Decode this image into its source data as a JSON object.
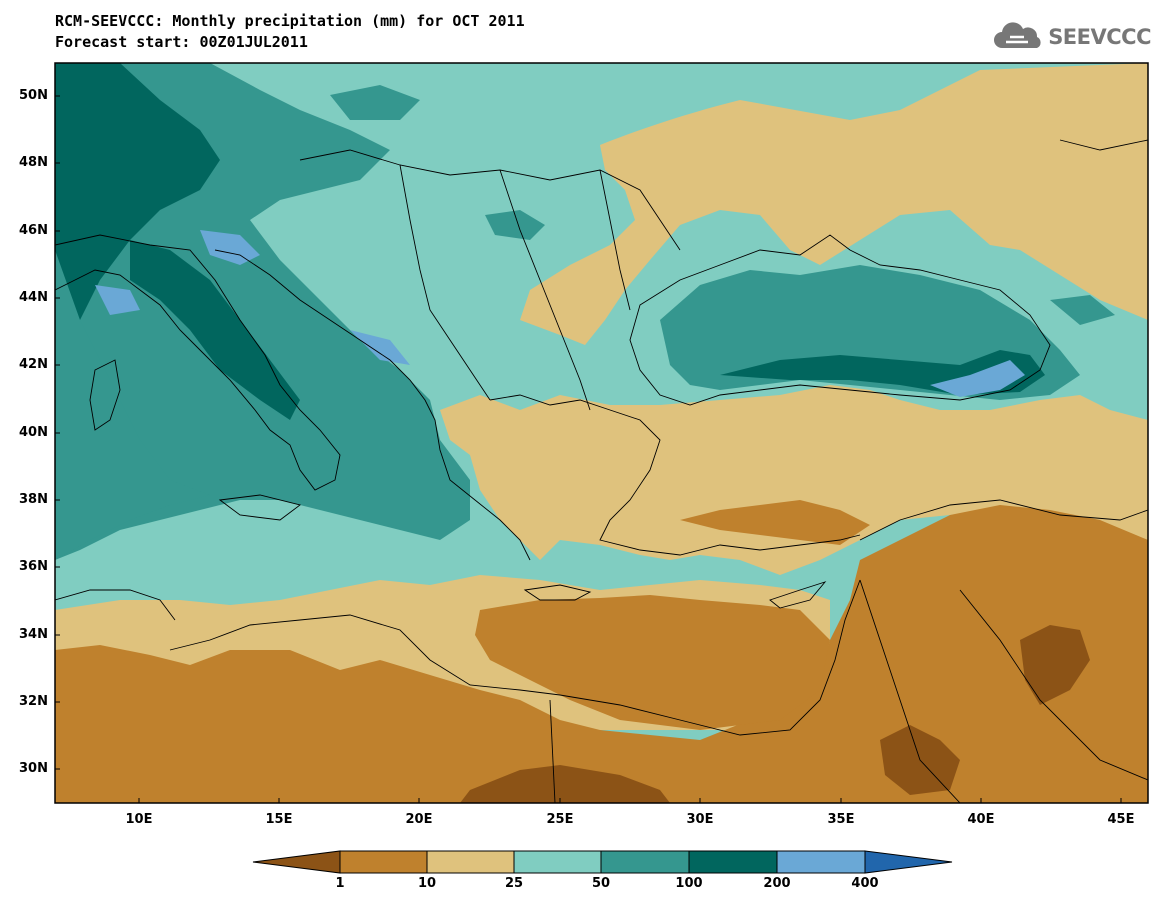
{
  "header": {
    "title": "RCM-SEEVCCC: Monthly precipitation (mm) for OCT 2011",
    "subtitle": "Forecast start: 00Z01JUL2011",
    "logo_text": "SEEVCCC"
  },
  "axes": {
    "lat_labels": [
      "50N",
      "48N",
      "46N",
      "44N",
      "42N",
      "40N",
      "38N",
      "36N",
      "34N",
      "32N",
      "30N"
    ],
    "lon_labels": [
      "10E",
      "15E",
      "20E",
      "25E",
      "30E",
      "35E",
      "40E",
      "45E"
    ]
  },
  "colorbar": {
    "thresholds": [
      "1",
      "10",
      "25",
      "50",
      "100",
      "200",
      "400"
    ],
    "colors": [
      "#8c5316",
      "#bf812d",
      "#dfc27d",
      "#80cdc1",
      "#35978f",
      "#01665e",
      "#6aa8d6",
      "#2166ac"
    ]
  },
  "regions": [
    {
      "name": "western-mediterranean",
      "class": "50-100 mm"
    },
    {
      "name": "black-sea",
      "class": "50-100 mm"
    },
    {
      "name": "north-africa",
      "class": "1-10 mm"
    },
    {
      "name": "eastern-mediterranean-sea",
      "class": "1-10 mm"
    },
    {
      "name": "anatolia",
      "class": "10-25 mm"
    },
    {
      "name": "ukraine",
      "class": "10-25 mm"
    },
    {
      "name": "balkans",
      "class": "25-50 mm"
    }
  ]
}
